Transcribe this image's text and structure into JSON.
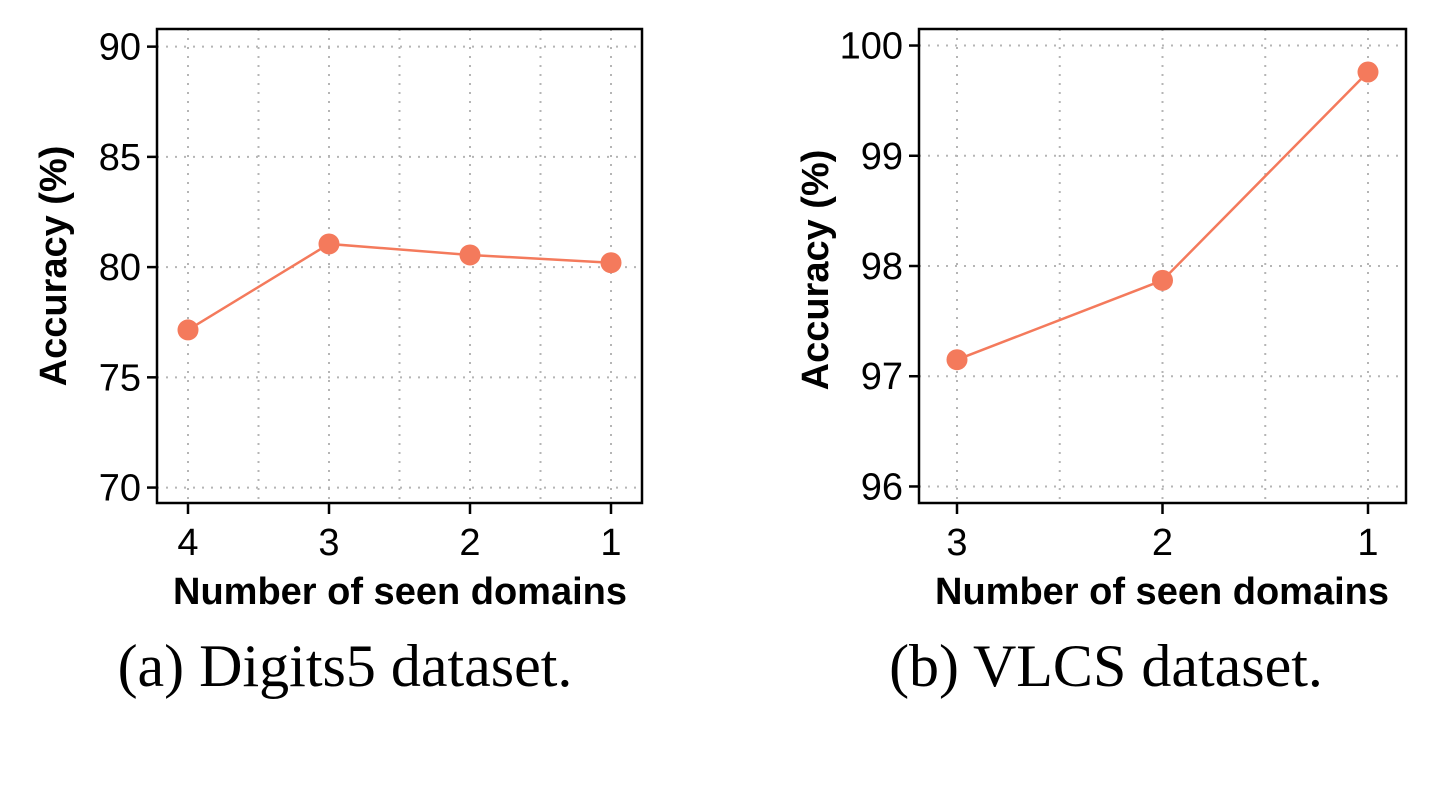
{
  "chart_data": [
    {
      "type": "line",
      "caption": "(a) Digits5 dataset.",
      "xlabel": "Number of seen domains",
      "ylabel": "Accuracy (%)",
      "categories": [
        "4",
        "3",
        "2",
        "1"
      ],
      "ylim": [
        69.3,
        90.8
      ],
      "yticks": [
        "70",
        "75",
        "80",
        "85",
        "90"
      ],
      "grid": true,
      "color": "#f47a5c",
      "series": [
        {
          "values": [
            77.15,
            81.05,
            80.55,
            80.2
          ]
        }
      ]
    },
    {
      "type": "line",
      "caption": "(b) VLCS dataset.",
      "xlabel": "Number of seen domains",
      "ylabel": "Accuracy (%)",
      "categories": [
        "3",
        "2",
        "1"
      ],
      "ylim": [
        95.85,
        100.15
      ],
      "yticks": [
        "96",
        "97",
        "98",
        "99",
        "100"
      ],
      "grid": true,
      "color": "#f47a5c",
      "series": [
        {
          "values": [
            97.15,
            97.87,
            99.76
          ]
        }
      ]
    }
  ]
}
